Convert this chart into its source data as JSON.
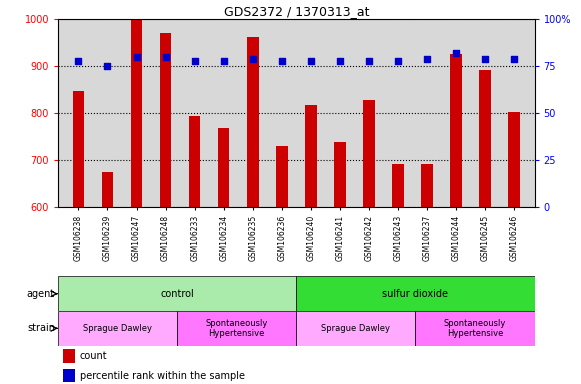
{
  "title": "GDS2372 / 1370313_at",
  "samples": [
    "GSM106238",
    "GSM106239",
    "GSM106247",
    "GSM106248",
    "GSM106233",
    "GSM106234",
    "GSM106235",
    "GSM106236",
    "GSM106240",
    "GSM106241",
    "GSM106242",
    "GSM106243",
    "GSM106237",
    "GSM106244",
    "GSM106245",
    "GSM106246"
  ],
  "counts": [
    848,
    675,
    1000,
    970,
    795,
    768,
    962,
    730,
    818,
    738,
    828,
    692,
    692,
    925,
    893,
    803
  ],
  "percentiles": [
    78,
    75,
    80,
    80,
    78,
    78,
    79,
    78,
    78,
    78,
    78,
    78,
    79,
    82,
    79,
    79
  ],
  "ylim_left": [
    600,
    1000
  ],
  "ylim_right": [
    0,
    100
  ],
  "yticks_left": [
    600,
    700,
    800,
    900,
    1000
  ],
  "yticks_right": [
    0,
    25,
    50,
    75,
    100
  ],
  "bar_color": "#CC0000",
  "dot_color": "#0000CC",
  "plot_bg_color": "#D8D8D8",
  "agent_groups": [
    {
      "label": "control",
      "start": 0,
      "end": 8,
      "color": "#AAEAAA"
    },
    {
      "label": "sulfur dioxide",
      "start": 8,
      "end": 16,
      "color": "#33DD33"
    }
  ],
  "strain_groups": [
    {
      "label": "Sprague Dawley",
      "start": 0,
      "end": 4,
      "color": "#FFAAFF"
    },
    {
      "label": "Spontaneously\nHypertensive",
      "start": 4,
      "end": 8,
      "color": "#FF77FF"
    },
    {
      "label": "Sprague Dawley",
      "start": 8,
      "end": 12,
      "color": "#FFAAFF"
    },
    {
      "label": "Spontaneously\nHypertensive",
      "start": 12,
      "end": 16,
      "color": "#FF77FF"
    }
  ],
  "legend_count_label": "count",
  "legend_pct_label": "percentile rank within the sample",
  "agent_label": "agent",
  "strain_label": "strain"
}
